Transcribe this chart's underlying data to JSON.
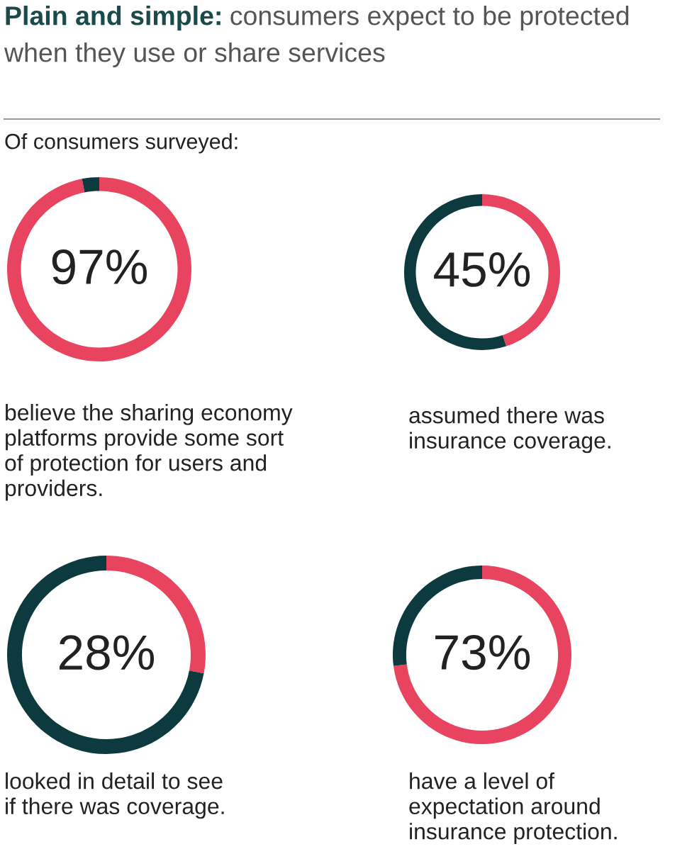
{
  "chart_data": [
    {
      "type": "donut",
      "title": "Plain and simple:",
      "subtitle": "consumers expect to be protected when they use or share services",
      "categories": [
        null,
        null
      ],
      "values": [
        97,
        3
      ],
      "colors": [
        "#e8435f",
        "#0d3a3f"
      ],
      "value_labels": [
        "97%",
        null
      ],
      "annotations": [
        "Of consumers surveyed:",
        "believe the sharing economy\nplatforms provide some sort\nof protection for users and\nproviders."
      ]
    },
    {
      "type": "donut",
      "categories": [
        null,
        null
      ],
      "values": [
        45,
        55
      ],
      "colors": [
        "#e8435f",
        "#0d3a3f"
      ],
      "value_labels": [
        "45%",
        null
      ],
      "annotations": [
        "assumed there was\ninsurance coverage."
      ]
    },
    {
      "type": "donut",
      "categories": [
        null,
        null
      ],
      "values": [
        28,
        72
      ],
      "colors": [
        "#e8435f",
        "#0d3a3f"
      ],
      "value_labels": [
        "28%",
        null
      ],
      "annotations": [
        "looked in detail to see\nif there was coverage."
      ]
    },
    {
      "type": "donut",
      "categories": [
        null,
        null
      ],
      "values": [
        73,
        27
      ],
      "colors": [
        "#e8435f",
        "#0d3a3f"
      ],
      "value_labels": [
        "73%",
        null
      ],
      "annotations": [
        "have a level of\nexpectation around\ninsurance protection."
      ]
    }
  ]
}
